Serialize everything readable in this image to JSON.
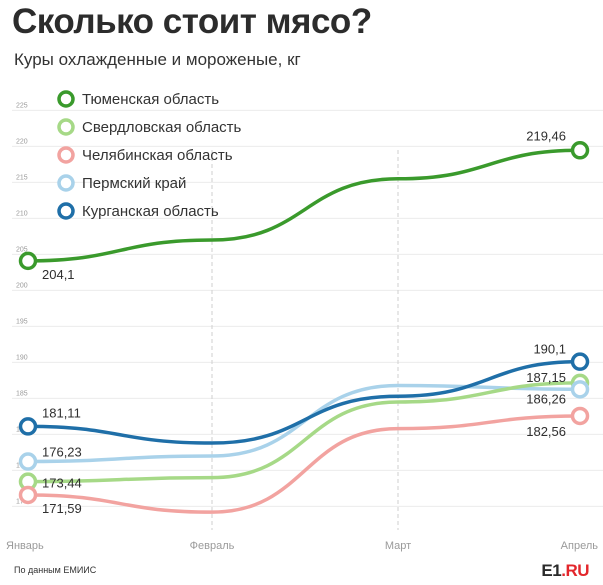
{
  "title": "Сколько стоит мясо?",
  "subtitle": "Куры охлажденные и мороженые, кг",
  "source": "По данным ЕМИИС",
  "logo": {
    "main": "E1",
    "dot": ".",
    "suffix": "RU"
  },
  "chart_data": {
    "type": "line",
    "categories": [
      "Январь",
      "Февраль",
      "Март",
      "Апрель"
    ],
    "ylim": [
      167,
      227
    ],
    "yticks": [
      170,
      175,
      180,
      185,
      190,
      195,
      200,
      205,
      210,
      215,
      220,
      225
    ],
    "grid": true,
    "legend_position": "top-left",
    "series": [
      {
        "name": "Тюменская область",
        "color": "#3a9a2c",
        "values": [
          204.1,
          207,
          215.5,
          219.46
        ],
        "labels": {
          "0": "204,1",
          "3": "219,46"
        }
      },
      {
        "name": "Свердловская область",
        "color": "#a6d987",
        "values": [
          173.44,
          174,
          184.5,
          187.15
        ],
        "labels": {
          "0": "173,44",
          "3": "187,15"
        }
      },
      {
        "name": "Челябинская область",
        "color": "#f2a3a0",
        "values": [
          171.59,
          169.2,
          180.8,
          182.56
        ],
        "labels": {
          "0": "171,59",
          "3": "182,56"
        }
      },
      {
        "name": "Пермский край",
        "color": "#a9d2ea",
        "values": [
          176.23,
          177,
          186.8,
          186.26
        ],
        "labels": {
          "0": "176,23",
          "3": "186,26"
        }
      },
      {
        "name": "Курганская область",
        "color": "#1f6fa8",
        "values": [
          181.11,
          178.8,
          185.3,
          190.1
        ],
        "labels": {
          "0": "181,11",
          "3": "190,1"
        }
      }
    ]
  }
}
